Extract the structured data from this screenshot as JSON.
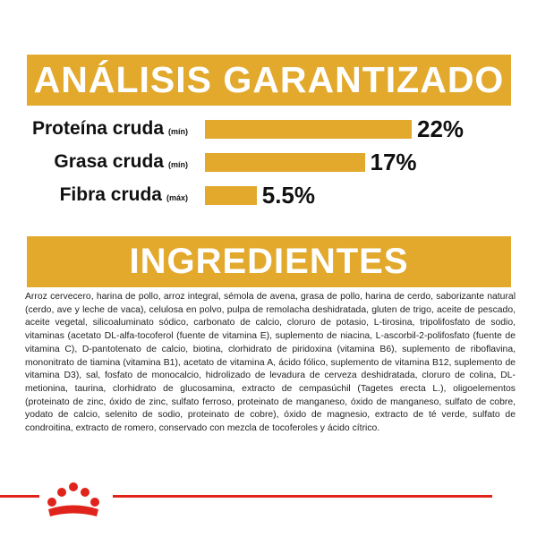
{
  "analysis": {
    "title": "ANÁLISIS GARANTIZADO",
    "rows": [
      {
        "label": "Proteína cruda",
        "qualifier": "(mín)",
        "value": "22%",
        "percent": 22
      },
      {
        "label": "Grasa cruda",
        "qualifier": "(mín)",
        "value": "17%",
        "percent": 17
      },
      {
        "label": "Fibra cruda",
        "qualifier": "(máx)",
        "value": "5.5%",
        "percent": 5.5
      }
    ]
  },
  "ingredients": {
    "title": "INGREDIENTES",
    "text": "Arroz cervecero, harina de pollo, arroz integral, sémola de avena, grasa de pollo, harina de cerdo, saborizante natural (cerdo, ave y leche de vaca), celulosa en polvo, pulpa de remolacha deshidratada, gluten de trigo, aceite de pescado, aceite vegetal, silicoaluminato sódico, carbonato de calcio, cloruro de potasio, L-tirosina, tripolifosfato de sodio, vitaminas (acetato DL-alfa-tocoferol (fuente de vitamina E), suplemento de niacina, L-ascorbil-2-polifosfato (fuente de vitamina C), D-pantotenato de calcio, biotina, clorhidrato de piridoxina (vitamina B6), suplemento de riboflavina, mononitrato de tiamina (vitamina B1), acetato de vitamina A, ácido fólico, suplemento de vitamina B12, suplemento de vitamina D3), sal, fosfato de monocalcio, hidrolizado de levadura de cerveza deshidratada, cloruro de colina, DL-metionina, taurina, clorhidrato de glucosamina, extracto de cempasúchil (Tagetes erecta L.), oligoelementos (proteinato de zinc, óxido de zinc, sulfato ferroso, proteinato de manganeso, óxido de manganeso, sulfato de cobre, yodato de calcio, selenito de sodio, proteinato de cobre), óxido de magnesio, extracto de té verde, sulfato de condroitina, extracto de romero, conservado con mezcla de tocoferoles y ácido cítrico."
  },
  "colors": {
    "accent": "#e2a92d",
    "brand_red": "#e0241b",
    "text": "#111111"
  },
  "footer": {
    "logo_icon": "crown-logo-icon"
  }
}
